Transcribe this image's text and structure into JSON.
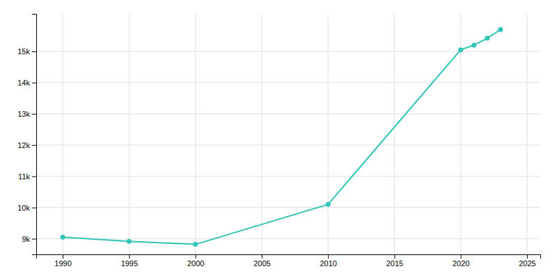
{
  "chart_data": {
    "type": "line",
    "x": [
      1990,
      1995,
      2000,
      2010,
      2020,
      2021,
      2022,
      2023
    ],
    "values": [
      9050,
      8920,
      8820,
      10100,
      15050,
      15200,
      15420,
      15700
    ],
    "color": "#2ec4b6",
    "marker": "circle",
    "xlim": [
      1988,
      2026
    ],
    "ylim": [
      8500,
      16200
    ],
    "xticks": [
      1990,
      1995,
      2000,
      2005,
      2010,
      2015,
      2020,
      2025
    ],
    "yticks": [
      {
        "value": 9000,
        "label": "9k"
      },
      {
        "value": 10000,
        "label": "10k"
      },
      {
        "value": 11000,
        "label": "11k"
      },
      {
        "value": 12000,
        "label": "12k"
      },
      {
        "value": 13000,
        "label": "13k"
      },
      {
        "value": 14000,
        "label": "14k"
      },
      {
        "value": 15000,
        "label": "15k"
      }
    ],
    "grid": true
  }
}
